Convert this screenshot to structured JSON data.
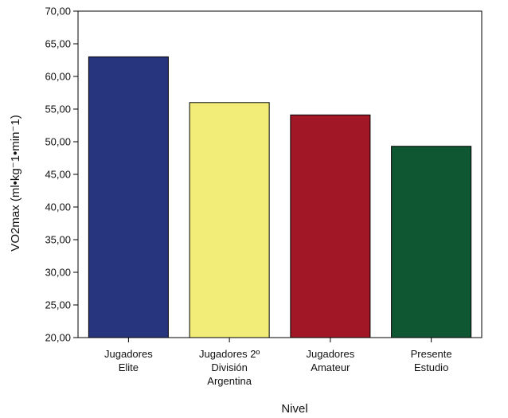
{
  "chart_data": {
    "type": "bar",
    "categories": [
      [
        "Jugadores",
        "Elite"
      ],
      [
        "Jugadores 2º",
        "División",
        "Argentina"
      ],
      [
        "Jugadores",
        "Amateur"
      ],
      [
        "Presente",
        "Estudio"
      ]
    ],
    "values": [
      63.0,
      56.0,
      54.1,
      49.3
    ],
    "bar_colors": [
      "#27357f",
      "#f2ed78",
      "#a11726",
      "#0f5632"
    ],
    "xlabel": "Nivel",
    "ylabel": "VO2max (ml•kg⁻1•min⁻1)",
    "ylim": [
      20,
      70
    ],
    "yticks": [
      "20,00",
      "25,00",
      "30,00",
      "35,00",
      "40,00",
      "45,00",
      "50,00",
      "55,00",
      "60,00",
      "65,00",
      "70,00"
    ],
    "grid": false,
    "legend": "none"
  }
}
